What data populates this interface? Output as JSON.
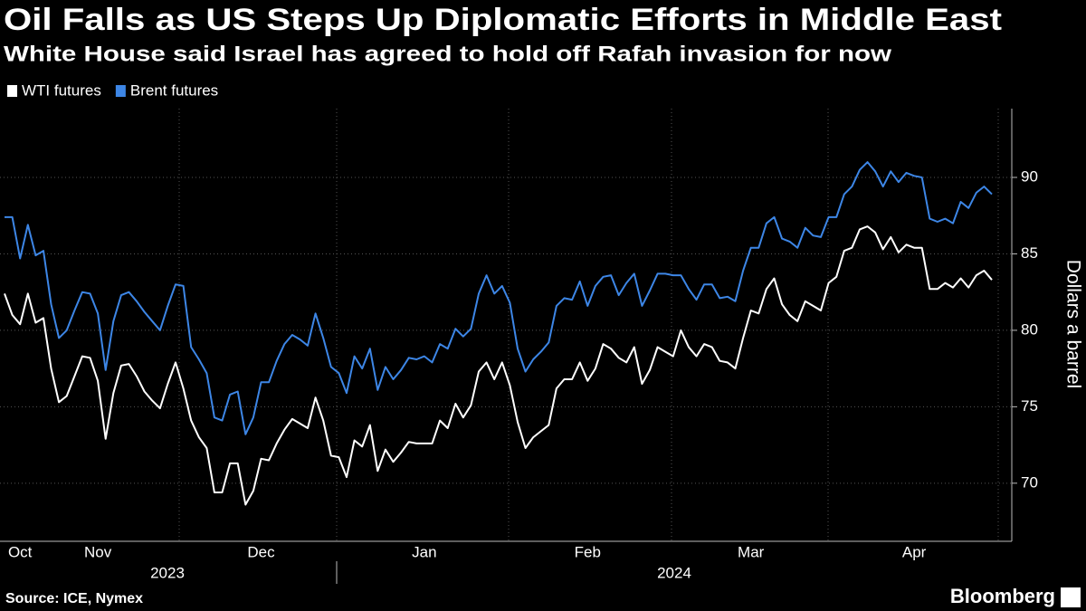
{
  "chart_data": {
    "type": "line",
    "title": "Oil Falls as US Steps Up Diplomatic Efforts in Middle East",
    "subtitle": "White House said Israel has agreed to hold off Rafah invasion for now",
    "y_label": "Dollars a barrel",
    "source": "Source: ICE, Nymex",
    "brand": "Bloomberg",
    "annotations": [
      "2023",
      "2024"
    ],
    "categories": [
      null,
      null,
      "Oct",
      null,
      null,
      null,
      null,
      null,
      null,
      null,
      null,
      null,
      "Nov",
      null,
      null,
      null,
      null,
      null,
      null,
      null,
      null,
      null,
      null,
      null,
      null,
      null,
      null,
      null,
      null,
      null,
      null,
      null,
      null,
      "Dec",
      null,
      null,
      null,
      null,
      null,
      null,
      null,
      null,
      null,
      null,
      null,
      null,
      null,
      null,
      null,
      null,
      null,
      null,
      null,
      null,
      "Jan",
      null,
      null,
      null,
      null,
      null,
      null,
      null,
      null,
      null,
      null,
      null,
      null,
      null,
      null,
      null,
      null,
      null,
      null,
      null,
      null,
      "Feb",
      null,
      null,
      null,
      null,
      null,
      null,
      null,
      null,
      null,
      null,
      null,
      null,
      null,
      null,
      null,
      null,
      null,
      null,
      null,
      null,
      "Mar",
      null,
      null,
      null,
      null,
      null,
      null,
      null,
      null,
      null,
      null,
      null,
      null,
      null,
      null,
      null,
      null,
      null,
      null,
      null,
      null,
      "Apr",
      null,
      null,
      null,
      null,
      null,
      null,
      null,
      null,
      null,
      null
    ],
    "series": [
      {
        "name": "WTI futures",
        "color": "#ffffff",
        "values": [
          82.4,
          81.0,
          80.4,
          82.4,
          80.5,
          80.8,
          77.5,
          75.3,
          75.7,
          77.0,
          78.3,
          78.2,
          76.7,
          72.9,
          75.9,
          77.7,
          77.8,
          77.0,
          76.0,
          75.4,
          74.9,
          76.5,
          77.9,
          76.2,
          74.1,
          73.0,
          72.3,
          69.4,
          69.4,
          71.3,
          71.3,
          68.6,
          69.5,
          71.6,
          71.5,
          72.6,
          73.5,
          74.2,
          73.9,
          73.6,
          75.6,
          74.1,
          71.8,
          71.7,
          70.4,
          72.8,
          72.4,
          73.8,
          70.8,
          72.2,
          71.4,
          72.0,
          72.7,
          72.6,
          72.6,
          72.6,
          74.1,
          73.6,
          75.2,
          74.3,
          75.1,
          77.3,
          77.9,
          76.8,
          77.9,
          76.4,
          74.0,
          72.3,
          73.0,
          73.4,
          73.8,
          76.2,
          76.8,
          76.8,
          77.9,
          76.7,
          77.5,
          79.1,
          78.8,
          78.2,
          77.9,
          78.9,
          76.5,
          77.4,
          78.9,
          78.6,
          78.3,
          80.0,
          78.9,
          78.3,
          79.1,
          78.9,
          78.0,
          77.9,
          77.5,
          79.5,
          81.3,
          81.1,
          82.7,
          83.4,
          81.7,
          81.0,
          80.6,
          81.9,
          81.6,
          81.3,
          83.1,
          83.5,
          85.2,
          85.4,
          86.6,
          86.8,
          86.4,
          85.3,
          86.1,
          85.1,
          85.6,
          85.4,
          85.4,
          82.7,
          82.7,
          83.1,
          82.8,
          83.4,
          82.8,
          83.6,
          83.9,
          83.3
        ]
      },
      {
        "name": "Brent futures",
        "color": "#3d86e6",
        "values": [
          87.4,
          87.4,
          84.7,
          86.9,
          84.9,
          85.2,
          81.7,
          79.5,
          80.0,
          81.3,
          82.5,
          82.4,
          81.1,
          77.4,
          80.6,
          82.3,
          82.5,
          81.9,
          81.2,
          80.6,
          80.0,
          81.6,
          83.0,
          82.9,
          78.9,
          78.1,
          77.2,
          74.3,
          74.1,
          75.8,
          76.0,
          73.2,
          74.3,
          76.6,
          76.6,
          78.0,
          79.1,
          79.7,
          79.4,
          79.0,
          81.1,
          79.5,
          77.6,
          77.2,
          75.9,
          78.3,
          77.5,
          78.8,
          76.1,
          77.6,
          76.8,
          77.4,
          78.2,
          78.1,
          78.3,
          77.9,
          79.1,
          78.8,
          80.1,
          79.6,
          80.1,
          82.4,
          83.6,
          82.4,
          82.9,
          81.8,
          78.8,
          77.3,
          78.1,
          78.6,
          79.2,
          81.6,
          82.1,
          82.0,
          83.2,
          81.6,
          82.9,
          83.5,
          83.6,
          82.3,
          83.1,
          83.7,
          81.6,
          82.6,
          83.7,
          83.7,
          83.6,
          83.6,
          82.7,
          82.0,
          83.0,
          83.0,
          82.1,
          82.2,
          81.9,
          83.9,
          85.4,
          85.4,
          87.0,
          87.4,
          86.0,
          85.8,
          85.4,
          86.7,
          86.2,
          86.1,
          87.4,
          87.4,
          88.9,
          89.4,
          90.5,
          91.0,
          90.4,
          89.4,
          90.4,
          89.7,
          90.3,
          90.1,
          90.0,
          87.3,
          87.1,
          87.3,
          87.0,
          88.4,
          88.0,
          89.0,
          89.4,
          88.9
        ]
      }
    ],
    "ylim": [
      66.2,
      94.5
    ],
    "yticks": [
      70,
      75,
      80,
      85,
      90
    ],
    "grid": true
  }
}
